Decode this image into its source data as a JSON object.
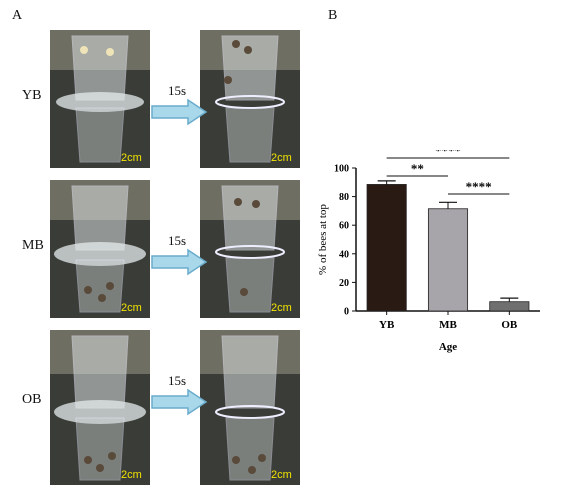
{
  "panel_a": {
    "letter": "A",
    "rows": [
      {
        "label": "YB",
        "arrow_label": "15s",
        "scale_before": "2cm",
        "scale_after": "2cm"
      },
      {
        "label": "MB",
        "arrow_label": "15s",
        "scale_before": "2cm",
        "scale_after": "2cm"
      },
      {
        "label": "OB",
        "arrow_label": "15s",
        "scale_before": "2cm",
        "scale_after": "2cm"
      }
    ],
    "colors": {
      "arrow_fill": "#a8d8ea",
      "arrow_stroke": "#6aaccc",
      "scale_text": "#f2e400"
    }
  },
  "panel_b": {
    "letter": "B"
  },
  "chart_data": {
    "type": "bar",
    "categories": [
      "YB",
      "MB",
      "OB"
    ],
    "values": [
      88.5,
      71.5,
      6.5
    ],
    "errors": [
      2.5,
      4.5,
      2.5
    ],
    "colors": [
      "#2a1a14",
      "#a7a5aa",
      "#6f6f6f"
    ],
    "xlabel": "Age",
    "ylabel": "% of bees at top",
    "ylim": [
      0,
      100
    ],
    "yticks": [
      0,
      20,
      40,
      60,
      80,
      100
    ],
    "grid": false,
    "significance": [
      {
        "from": "YB",
        "to": "MB",
        "label": "**"
      },
      {
        "from": "YB",
        "to": "OB",
        "label": "****"
      },
      {
        "from": "MB",
        "to": "OB",
        "label": "****"
      }
    ]
  }
}
